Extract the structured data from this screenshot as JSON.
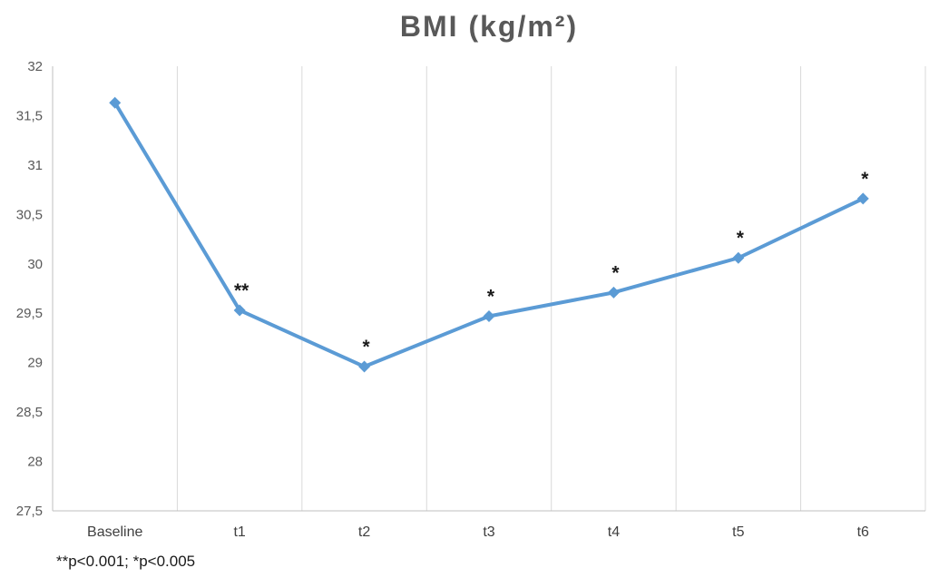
{
  "chart_data": {
    "type": "line",
    "title": "BMI (kg/m²)",
    "categories": [
      "Baseline",
      "t1",
      "t2",
      "t3",
      "t4",
      "t5",
      "t6"
    ],
    "series": [
      {
        "name": "BMI",
        "values": [
          31.63,
          29.53,
          28.96,
          29.47,
          29.71,
          30.06,
          30.66
        ]
      }
    ],
    "point_annotations": [
      "",
      "**",
      "*",
      "*",
      "*",
      "*",
      "*"
    ],
    "ylim": [
      27.5,
      32
    ],
    "y_ticks": [
      {
        "value": 32,
        "label": "32"
      },
      {
        "value": 31.5,
        "label": "31,5"
      },
      {
        "value": 31,
        "label": "31"
      },
      {
        "value": 30.5,
        "label": "30,5"
      },
      {
        "value": 30,
        "label": "30"
      },
      {
        "value": 29.5,
        "label": "29,5"
      },
      {
        "value": 29,
        "label": "29"
      },
      {
        "value": 28.5,
        "label": "28,5"
      },
      {
        "value": 28,
        "label": "28"
      },
      {
        "value": 27.5,
        "label": "27,5"
      }
    ],
    "xlabel": "",
    "ylabel": "",
    "legend": "none",
    "grid": "vertical-only",
    "marker": "diamond",
    "footnote": "**p<0.001; *p<0.005"
  },
  "colors": {
    "line": "#5B9BD5",
    "marker": "#5B9BD5",
    "title": "#595959",
    "y_tick_label": "#595959",
    "x_tick_label": "#404040",
    "gridline": "#D9D9D9",
    "axis_line": "#BFBFBF",
    "annotation": "#1a1a1a",
    "footnote": "#1a1a1a",
    "background": "#ffffff"
  }
}
